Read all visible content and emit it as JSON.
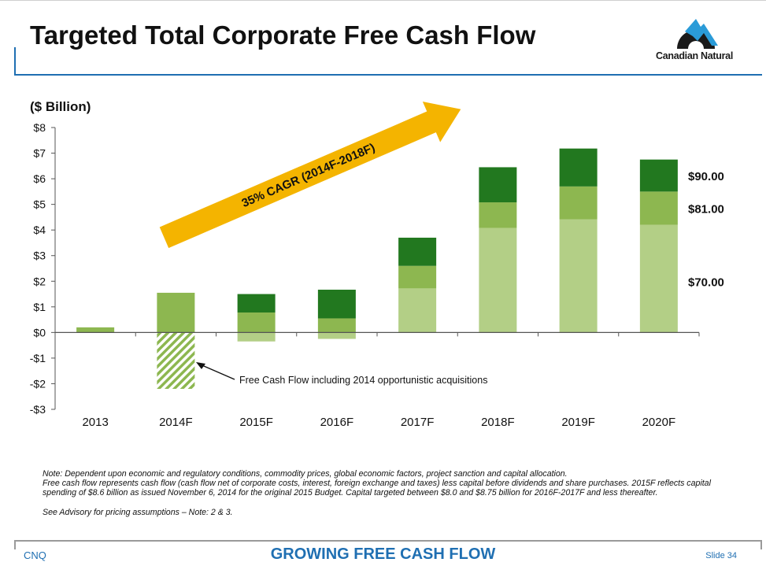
{
  "header": {
    "title": "Targeted Total Corporate Free Cash Flow",
    "logo_icon": "canadian-natural-logo-icon",
    "logo_text": "Canadian Natural"
  },
  "chart_data": {
    "type": "bar",
    "stacked": true,
    "ylabel": "($ Billion)",
    "ylim": [
      -3,
      8
    ],
    "yticks": [
      -3,
      -2,
      -1,
      0,
      1,
      2,
      3,
      4,
      5,
      6,
      7,
      8
    ],
    "ytick_labels": [
      "-$3",
      "-$2",
      "-$1",
      "$0",
      "$1",
      "$2",
      "$3",
      "$4",
      "$5",
      "$6",
      "$7",
      "$8"
    ],
    "categories": [
      "2013",
      "2014F",
      "2015F",
      "2016F",
      "2017F",
      "2018F",
      "2019F",
      "2020F"
    ],
    "series": [
      {
        "name": "$70.00",
        "color": "#b3cf86",
        "values": [
          null,
          null,
          -0.35,
          -0.25,
          1.72,
          4.08,
          4.42,
          4.2
        ]
      },
      {
        "name": "$81.00",
        "color": "#8db750",
        "values": [
          0.2,
          1.55,
          0.78,
          0.55,
          0.88,
          1.0,
          1.28,
          1.3
        ]
      },
      {
        "name": "$90.00",
        "color": "#22781f",
        "values": [
          null,
          null,
          0.72,
          1.12,
          1.1,
          1.37,
          1.48,
          1.25
        ]
      }
    ],
    "additional": {
      "label": "Free Cash Flow including 2014 opportunistic acquisitions",
      "category": "2014F",
      "value": -2.2,
      "pattern": "hatched",
      "color": "#8db750"
    },
    "arrow_annotation": "35% CAGR (2014F-2018F)",
    "legend_placement": "right"
  },
  "notes": {
    "line1": "Note: Dependent upon economic and regulatory conditions, commodity prices, global economic factors, project sanction and capital allocation.",
    "line2": "Free cash flow represents cash flow (cash flow net of corporate costs, interest, foreign exchange and taxes) less capital before dividends and share purchases. 2015F reflects capital spending of $8.6 billion as issued November 6, 2014  for the original 2015 Budget.  Capital targeted between $8.0 and $8.75 billion for 2016F-2017F and less thereafter.",
    "line3": "See Advisory for pricing assumptions – Note: 2 & 3."
  },
  "footer": {
    "left": "CNQ",
    "center": "GROWING FREE CASH FLOW",
    "right": "Slide 34"
  },
  "colors": {
    "accent_blue": "#1f6fb2",
    "arrow_gold": "#f4b400"
  }
}
